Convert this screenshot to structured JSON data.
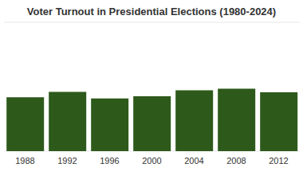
{
  "chart_data": {
    "type": "bar",
    "title": "Voter Turnout in Presidential Elections (1980-2024)",
    "categories": [
      "1988",
      "1992",
      "1996",
      "2000",
      "2004",
      "2008",
      "2012"
    ],
    "values": [
      50.2,
      55.2,
      49.0,
      51.2,
      56.7,
      58.2,
      54.9
    ],
    "color": "#2d5a1b",
    "ylim": [
      0,
      120
    ],
    "yticks": [
      0,
      30,
      60,
      90,
      120
    ],
    "grid": true,
    "tick_labels": "x"
  }
}
